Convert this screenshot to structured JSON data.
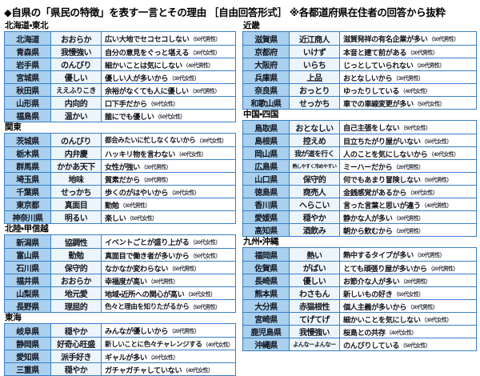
{
  "title": "◆自県の「県民の特徴」を表す一言とその理由 ［自由回答形式］ ※各都道府県在住者の回答から抜粋",
  "colors": {
    "border": "#3a7ec6",
    "prefecture_bg": "#a9d0ee",
    "word_bg": "#edf5fc",
    "reason_bg": "#ffffff"
  },
  "columns": {
    "left": {
      "sections": [
        {
          "label": "北海道・東北",
          "rows": [
            {
              "pref": "北海道",
              "word": "おおらか",
              "reason": "広い大地でセコセコしない",
              "respondent": "（50代男性）"
            },
            {
              "pref": "青森県",
              "word": "我慢強い",
              "reason": "自分の意見をぐっと堪える",
              "respondent": "（30代女性）"
            },
            {
              "pref": "岩手県",
              "word": "のんびり",
              "reason": "細かいことは気にしない",
              "respondent": "（40代男性）"
            },
            {
              "pref": "宮城県",
              "word": "優しい",
              "reason": "優しい人が多いから",
              "respondent": "（30代女性）"
            },
            {
              "pref": "秋田県",
              "word": "ええふりこき",
              "reason": "余裕がなくても人に優しい",
              "respondent": "（30代男性）"
            },
            {
              "pref": "山形県",
              "word": "内向的",
              "reason": "口下手だから",
              "respondent": "（50代女性）"
            },
            {
              "pref": "福島県",
              "word": "温かい",
              "reason": "誰にでも優しい",
              "respondent": "（50代女性）"
            }
          ]
        },
        {
          "label": "関東",
          "rows": [
            {
              "pref": "茨城県",
              "word": "のんびり",
              "reason": "都会みたいに忙しなくないから",
              "respondent": "（30代女性）"
            },
            {
              "pref": "栃木県",
              "word": "内弁慶",
              "reason": "ハッキリ物を言わない",
              "respondent": "（40代女性）"
            },
            {
              "pref": "群馬県",
              "word": "かかあ天下",
              "reason": "女性が強い",
              "respondent": "（30代男性）"
            },
            {
              "pref": "埼玉県",
              "word": "地味",
              "reason": "質素だから",
              "respondent": "（20代男性）"
            },
            {
              "pref": "千葉県",
              "word": "せっかち",
              "reason": "歩くのがはやいから",
              "respondent": "（20代女性）"
            },
            {
              "pref": "東京都",
              "word": "真面目",
              "reason": "勤勉",
              "respondent": "（30代男性）"
            },
            {
              "pref": "神奈川県",
              "word": "明るい",
              "reason": "楽しい",
              "respondent": "（50代女性）"
            }
          ]
        },
        {
          "label": "北陸・甲信越",
          "rows": [
            {
              "pref": "新潟県",
              "word": "協調性",
              "reason": "イベントごとが盛り上がる",
              "respondent": "（20代女性）"
            },
            {
              "pref": "富山県",
              "word": "勤勉",
              "reason": "真面目で働き者が多いから",
              "respondent": "（50代女性）"
            },
            {
              "pref": "石川県",
              "word": "保守的",
              "reason": "なかなか変わらない",
              "respondent": "（50代男性）"
            },
            {
              "pref": "福井県",
              "word": "おおらか",
              "reason": "幸福度が高い",
              "respondent": "（30代男性）"
            },
            {
              "pref": "山梨県",
              "word": "地元愛",
              "reason": "地域・近所への関心が高い",
              "respondent": "（30代女性）"
            },
            {
              "pref": "長野県",
              "word": "理屈的",
              "reason": "色々と理由を知りたがるから",
              "respondent": "（50代男性）"
            }
          ]
        },
        {
          "label": "東海",
          "rows": [
            {
              "pref": "岐阜県",
              "word": "穏やか",
              "reason": "みんなが優しいから",
              "respondent": "（20代男性）"
            },
            {
              "pref": "静岡県",
              "word": "好奇心旺盛",
              "reason": "新しいことに色々チャレンジする",
              "respondent": "（40代女性）"
            },
            {
              "pref": "愛知県",
              "word": "派手好き",
              "reason": "ギャルが多い",
              "respondent": "（20代女性）"
            },
            {
              "pref": "三重県",
              "word": "穏やか",
              "reason": "ガチャガチャしていない",
              "respondent": "（40代女性）"
            }
          ]
        }
      ]
    },
    "right": {
      "sections": [
        {
          "label": "近畿",
          "rows": [
            {
              "pref": "滋賀県",
              "word": "近江商人",
              "reason": "滋賀発祥の有名企業が多い",
              "respondent": "（50代男性）"
            },
            {
              "pref": "京都府",
              "word": "いけず",
              "reason": "本音と建て前がある",
              "respondent": "（30代男性）"
            },
            {
              "pref": "大阪府",
              "word": "いらち",
              "reason": "じっとしていられない",
              "respondent": "（20代男性）"
            },
            {
              "pref": "兵庫県",
              "word": "上品",
              "reason": "おとなしいから",
              "respondent": "（30代男性）"
            },
            {
              "pref": "奈良県",
              "word": "おっとり",
              "reason": "ゆったりしている",
              "respondent": "（40代女性）"
            },
            {
              "pref": "和歌山県",
              "word": "せっかち",
              "reason": "車での車線変更が多い",
              "respondent": "（50代女性）"
            }
          ]
        },
        {
          "label": "中国・四国",
          "rows": [
            {
              "pref": "鳥取県",
              "word": "おとなしい",
              "reason": "自己主張をしない",
              "respondent": "（50代女性）"
            },
            {
              "pref": "島根県",
              "word": "控えめ",
              "reason": "目立ちたがり屋がいない",
              "respondent": "（50代女性）"
            },
            {
              "pref": "岡山県",
              "word": "我が道を行く",
              "reason": "人のことを気にしないから",
              "respondent": "（40代女性）"
            },
            {
              "pref": "広島県",
              "word": "熱しやすく冷めやすい",
              "reason": "ミーハーだから",
              "respondent": "（20代男性）"
            },
            {
              "pref": "山口県",
              "word": "保守的",
              "reason": "何でもあまり冒険しない",
              "respondent": "（50代男性）"
            },
            {
              "pref": "徳島県",
              "word": "商売人",
              "reason": "金銭感覚があるから",
              "respondent": "（30代女性）"
            },
            {
              "pref": "香川県",
              "word": "へらこい",
              "reason": "言った言葉と思いが違う",
              "respondent": "（40代男性）"
            },
            {
              "pref": "愛媛県",
              "word": "穏やか",
              "reason": "静かな人が多い",
              "respondent": "（30代男性）"
            },
            {
              "pref": "高知県",
              "word": "酒飲み",
              "reason": "朝から飲むから",
              "respondent": "（20代男性）"
            }
          ]
        },
        {
          "label": "九州・沖縄",
          "rows": [
            {
              "pref": "福岡県",
              "word": "熱い",
              "reason": "熱中するタイプが多い",
              "respondent": "（30代男性）"
            },
            {
              "pref": "佐賀県",
              "word": "がばい",
              "reason": "とても頑張り屋が多いから",
              "respondent": "（20代男性）"
            },
            {
              "pref": "長崎県",
              "word": "優しい",
              "reason": "お節介な人が多い",
              "respondent": "（20代男性）"
            },
            {
              "pref": "熊本県",
              "word": "わさもん",
              "reason": "新しいもの好き",
              "respondent": "（50代女性）"
            },
            {
              "pref": "大分県",
              "word": "赤猫根性",
              "reason": "個人主義が多いから",
              "respondent": "（30代男性）"
            },
            {
              "pref": "宮崎県",
              "word": "てげてげ",
              "reason": "細かいことを気にしない",
              "respondent": "（30代女性）"
            },
            {
              "pref": "鹿児島県",
              "word": "我慢強い",
              "reason": "桜島との共存",
              "respondent": "（40代女性）"
            },
            {
              "pref": "沖縄県",
              "word": "よんなーよんなー",
              "reason": "のんびりしている",
              "respondent": "（50代女性）"
            }
          ]
        }
      ]
    }
  }
}
